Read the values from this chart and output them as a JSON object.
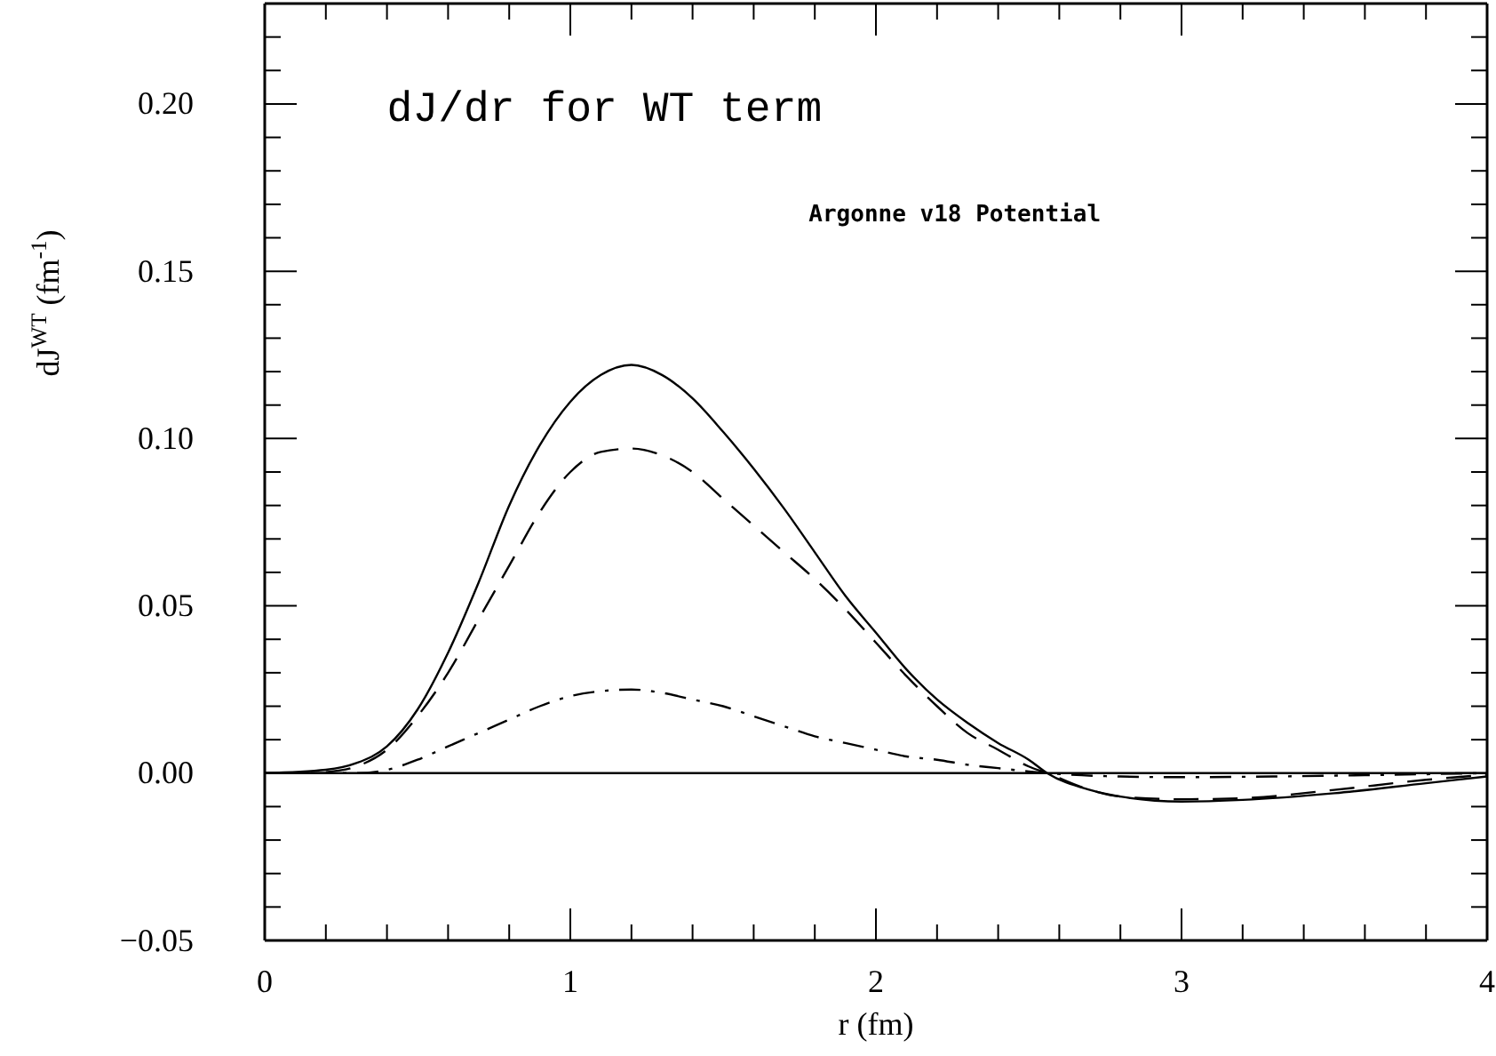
{
  "chart_data": {
    "type": "line",
    "title": "dJ/dr for WT term",
    "xlabel": "r (fm)",
    "ylabel": "dJ$^{WT}$ (fm$^{-1}$)",
    "annotations": [
      "Argonne v18 Potential"
    ],
    "xlim": [
      0,
      4
    ],
    "ylim": [
      -0.05,
      0.23
    ],
    "xticks": [
      0,
      {
        "value": 0.2,
        "label": null
      },
      {
        "value": 0.4,
        "label": null
      },
      {
        "value": 0.6,
        "label": null
      },
      {
        "value": 0.8,
        "label": null
      },
      1,
      {
        "value": 1.2,
        "label": null
      },
      {
        "value": 1.4,
        "label": null
      },
      {
        "value": 1.6,
        "label": null
      },
      {
        "value": 1.8,
        "label": null
      },
      2,
      {
        "value": 2.2,
        "label": null
      },
      {
        "value": 2.4,
        "label": null
      },
      {
        "value": 2.6,
        "label": null
      },
      {
        "value": 2.8,
        "label": null
      },
      3,
      {
        "value": 3.2,
        "label": null
      },
      {
        "value": 3.4,
        "label": null
      },
      {
        "value": 3.6,
        "label": null
      },
      {
        "value": 3.8,
        "label": null
      },
      4
    ],
    "yticks": [
      {
        "value": -0.05,
        "label": "−0.05"
      },
      {
        "value": -0.04,
        "label": null
      },
      {
        "value": -0.03,
        "label": null
      },
      {
        "value": -0.02,
        "label": null
      },
      {
        "value": -0.01,
        "label": null
      },
      {
        "value": 0,
        "label": "0.00"
      },
      {
        "value": 0.01,
        "label": null
      },
      {
        "value": 0.02,
        "label": null
      },
      {
        "value": 0.03,
        "label": null
      },
      {
        "value": 0.04,
        "label": null
      },
      {
        "value": 0.05,
        "label": "0.05"
      },
      {
        "value": 0.06,
        "label": null
      },
      {
        "value": 0.07,
        "label": null
      },
      {
        "value": 0.08,
        "label": null
      },
      {
        "value": 0.09,
        "label": null
      },
      {
        "value": 0.1,
        "label": "0.10"
      },
      {
        "value": 0.11,
        "label": null
      },
      {
        "value": 0.12,
        "label": null
      },
      {
        "value": 0.13,
        "label": null
      },
      {
        "value": 0.14,
        "label": null
      },
      {
        "value": 0.15,
        "label": "0.15"
      },
      {
        "value": 0.16,
        "label": null
      },
      {
        "value": 0.17,
        "label": null
      },
      {
        "value": 0.18,
        "label": null
      },
      {
        "value": 0.19,
        "label": null
      },
      {
        "value": 0.2,
        "label": "0.20"
      },
      {
        "value": 0.21,
        "label": null
      },
      {
        "value": 0.22,
        "label": null
      }
    ],
    "ref_lines": [
      {
        "axis": "y",
        "value": 0,
        "color": "#000000",
        "line_style": "solid"
      }
    ],
    "series": [
      {
        "color": "#000000",
        "line_style": "solid",
        "x": [
          0,
          0.2,
          0.3,
          0.4,
          0.5,
          0.6,
          0.7,
          0.8,
          0.9,
          1.0,
          1.1,
          1.2,
          1.3,
          1.4,
          1.5,
          1.6,
          1.7,
          1.8,
          1.9,
          2.0,
          2.1,
          2.2,
          2.3,
          2.4,
          2.5,
          2.56,
          2.7,
          2.8,
          3.0,
          3.2,
          3.5,
          3.8,
          4.0
        ],
        "values": [
          0,
          0.001,
          0.003,
          0.008,
          0.019,
          0.036,
          0.057,
          0.08,
          0.098,
          0.111,
          0.119,
          0.122,
          0.119,
          0.112,
          0.102,
          0.091,
          0.079,
          0.066,
          0.053,
          0.042,
          0.031,
          0.022,
          0.015,
          0.009,
          0.004,
          0,
          -0.005,
          -0.007,
          -0.0085,
          -0.008,
          -0.006,
          -0.003,
          -0.001
        ]
      },
      {
        "color": "#000000",
        "line_style": "dashed",
        "x": [
          0.2,
          0.3,
          0.4,
          0.5,
          0.6,
          0.7,
          0.8,
          0.9,
          1.0,
          1.1,
          1.2,
          1.3,
          1.4,
          1.5,
          1.6,
          1.7,
          1.8,
          1.9,
          2.0,
          2.1,
          2.2,
          2.3,
          2.4,
          2.5,
          2.56,
          2.7,
          2.8,
          3.0,
          3.2,
          3.5,
          3.8,
          4.0
        ],
        "values": [
          0.0003,
          0.002,
          0.007,
          0.017,
          0.03,
          0.046,
          0.062,
          0.078,
          0.09,
          0.096,
          0.097,
          0.095,
          0.09,
          0.082,
          0.074,
          0.066,
          0.058,
          0.049,
          0.039,
          0.029,
          0.02,
          0.012,
          0.007,
          0.002,
          0,
          -0.005,
          -0.007,
          -0.0078,
          -0.0075,
          -0.005,
          -0.002,
          -0.0005
        ]
      },
      {
        "color": "#000000",
        "line_style": "dashdot",
        "x": [
          0,
          0.3,
          0.4,
          0.5,
          0.6,
          0.7,
          0.8,
          0.9,
          1.0,
          1.1,
          1.2,
          1.3,
          1.4,
          1.5,
          1.6,
          1.7,
          1.8,
          1.9,
          2.0,
          2.1,
          2.2,
          2.3,
          2.4,
          2.5,
          2.56,
          2.8,
          3.0,
          3.3,
          3.6,
          4.0
        ],
        "values": [
          0,
          0,
          0.001,
          0.004,
          0.008,
          0.012,
          0.016,
          0.02,
          0.023,
          0.0245,
          0.025,
          0.024,
          0.022,
          0.02,
          0.017,
          0.014,
          0.011,
          0.009,
          0.007,
          0.005,
          0.004,
          0.0025,
          0.0015,
          0.0005,
          0,
          -0.001,
          -0.0012,
          -0.001,
          -0.0006,
          0
        ]
      }
    ]
  }
}
